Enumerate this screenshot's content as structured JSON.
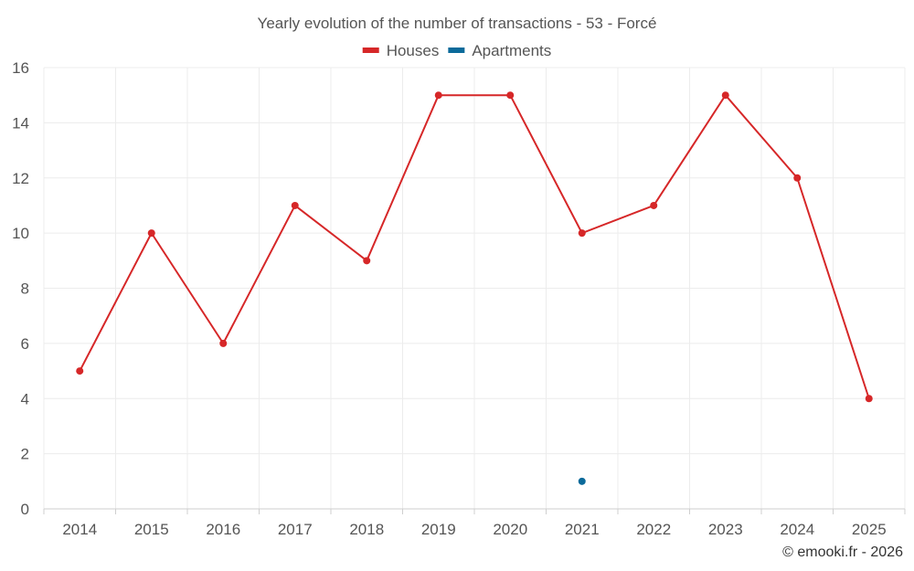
{
  "chart_data": {
    "type": "line",
    "title": "Yearly evolution of the number of transactions - 53 - Forcé",
    "categories": [
      "2014",
      "2015",
      "2016",
      "2017",
      "2018",
      "2019",
      "2020",
      "2021",
      "2022",
      "2023",
      "2024",
      "2025"
    ],
    "series": [
      {
        "name": "Houses",
        "color": "#d62728",
        "values": [
          5,
          10,
          6,
          11,
          9,
          15,
          15,
          10,
          11,
          15,
          12,
          4
        ]
      },
      {
        "name": "Apartments",
        "color": "#0b6a9a",
        "values": [
          null,
          null,
          null,
          null,
          null,
          null,
          null,
          1,
          null,
          null,
          null,
          null
        ]
      }
    ],
    "yticks": [
      0,
      2,
      4,
      6,
      8,
      10,
      12,
      14,
      16
    ],
    "ylim": [
      0,
      16
    ],
    "xlabel": "",
    "ylabel": "",
    "legend_position": "top-center",
    "grid": true
  },
  "credit": "© emooki.fr - 2026"
}
